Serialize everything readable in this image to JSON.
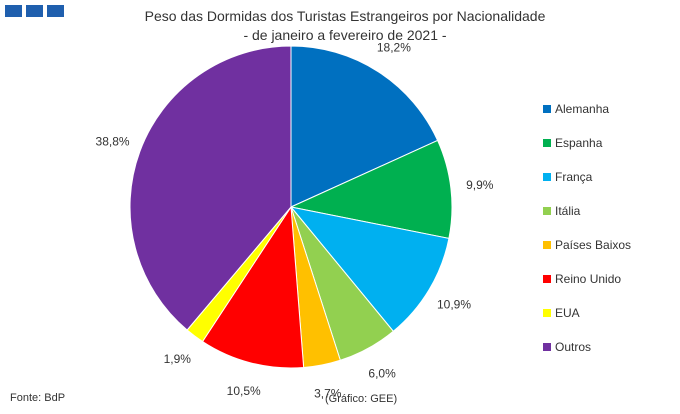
{
  "header": {
    "title_line1": "Peso das Dormidas dos Turistas Estrangeiros por Nacionalidade",
    "title_line2": "- de janeiro a fevereiro de 2021 -"
  },
  "chart_data": {
    "type": "pie",
    "title": "Peso das Dormidas dos Turistas Estrangeiros por Nacionalidade - de janeiro a fevereiro de 2021 -",
    "categories": [
      "Alemanha",
      "Espanha",
      "França",
      "Itália",
      "Países Baixos",
      "Reino Unido",
      "EUA",
      "Outros"
    ],
    "values": [
      18.2,
      9.9,
      10.9,
      6.0,
      3.7,
      10.5,
      1.9,
      38.8
    ],
    "value_labels": [
      "18,2%",
      "9,9%",
      "10,9%",
      "6,0%",
      "3,7%",
      "10,5%",
      "1,9%",
      "38,8%"
    ],
    "colors": [
      "#0070c0",
      "#00b050",
      "#00b0f0",
      "#92d050",
      "#ffc000",
      "#ff0000",
      "#ffff00",
      "#7030a0"
    ],
    "start_angle": "12 o'clock, clockwise",
    "legend_position": "right"
  },
  "footer": {
    "source": "Fonte: BdP",
    "credit": "(Gráfico: GEE)"
  }
}
